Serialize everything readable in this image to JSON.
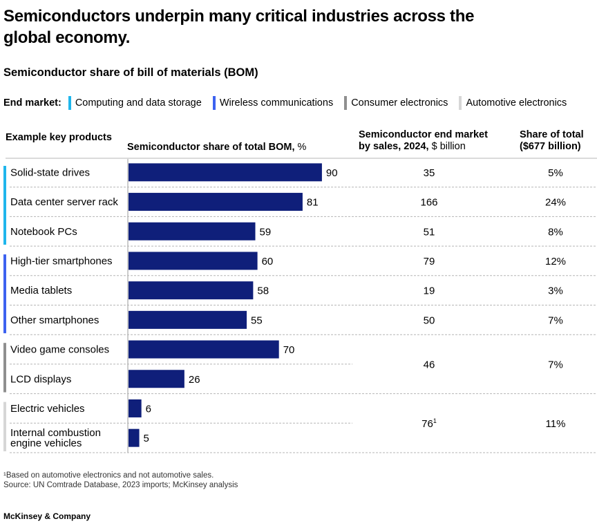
{
  "title": "Semiconductors underpin many critical industries across the global economy.",
  "subtitle": "Semiconductor share of bill of materials (BOM)",
  "legend": {
    "label": "End market:",
    "items": [
      {
        "label": "Computing and data storage",
        "color": "#1fb6ec"
      },
      {
        "label": "Wireless communications",
        "color": "#3d62f0"
      },
      {
        "label": "Consumer electronics",
        "color": "#8f8f8f"
      },
      {
        "label": "Automotive electronics",
        "color": "#d6d6d6"
      }
    ]
  },
  "headers": {
    "products": "Example key products",
    "bom_bold": "Semiconductor share of total BOM,",
    "bom_unit": "%",
    "market_bold_1": "Semiconductor end market",
    "market_bold_2": "by sales, 2024,",
    "market_unit": "$ billion",
    "share_1": "Share of total",
    "share_2": "($677 billion)"
  },
  "chart_data": {
    "type": "bar",
    "orientation": "horizontal",
    "title": "Semiconductor share of total BOM, %",
    "xlim": [
      0,
      100
    ],
    "bar_color": "#0f1f7a",
    "categories": [
      {
        "label": "Solid-state drives",
        "value": 90,
        "segment": 0
      },
      {
        "label": "Data center server rack",
        "value": 81,
        "segment": 0
      },
      {
        "label": "Notebook PCs",
        "value": 59,
        "segment": 0
      },
      {
        "label": "High-tier smartphones",
        "value": 60,
        "segment": 1
      },
      {
        "label": "Media tablets",
        "value": 58,
        "segment": 1
      },
      {
        "label": "Other smartphones",
        "value": 55,
        "segment": 1
      },
      {
        "label": "Video game consoles",
        "value": 70,
        "segment": 2
      },
      {
        "label": "LCD displays",
        "value": 26,
        "segment": 2
      },
      {
        "label": "Electric vehicles",
        "value": 6,
        "segment": 3
      },
      {
        "label": "Internal combustion engine vehicles",
        "value": 5,
        "segment": 3
      }
    ],
    "table": [
      {
        "rows": [
          0
        ],
        "market": "35",
        "share": "5%"
      },
      {
        "rows": [
          1
        ],
        "market": "166",
        "share": "24%"
      },
      {
        "rows": [
          2
        ],
        "market": "51",
        "share": "8%"
      },
      {
        "rows": [
          3
        ],
        "market": "79",
        "share": "12%"
      },
      {
        "rows": [
          4
        ],
        "market": "19",
        "share": "3%"
      },
      {
        "rows": [
          5
        ],
        "market": "50",
        "share": "7%"
      },
      {
        "rows": [
          6,
          7
        ],
        "market": "46",
        "share": "7%"
      },
      {
        "rows": [
          8,
          9
        ],
        "market": "76",
        "market_note": "1",
        "share": "11%"
      }
    ]
  },
  "footnotes": {
    "note": "¹Based on automotive electronics and not automotive sales.",
    "source": "Source: UN Comtrade Database, 2023 imports; McKinsey analysis"
  },
  "brand": "McKinsey & Company"
}
